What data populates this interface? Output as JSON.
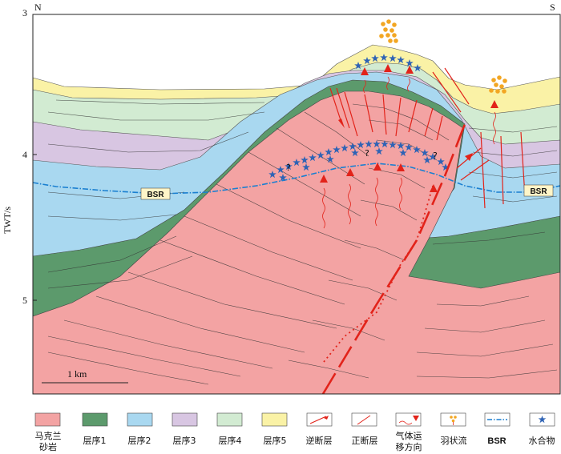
{
  "frame": {
    "left_label": "N",
    "right_label": "S",
    "y_axis_label": "TWT/s",
    "y_ticks": [
      "3",
      "4",
      "5"
    ]
  },
  "annotations": {
    "bsr_left": "BSR",
    "bsr_right": "BSR",
    "scale": "1 km",
    "question_mark": "?"
  },
  "legend": [
    {
      "id": "sandstone",
      "label": "马克兰\n砂岩",
      "fill": "#f3a3a3"
    },
    {
      "id": "seq1",
      "label": "层序1",
      "fill": "#5c9a6c"
    },
    {
      "id": "seq2",
      "label": "层序2",
      "fill": "#a9d8f0"
    },
    {
      "id": "seq3",
      "label": "层序3",
      "fill": "#d8c6e2"
    },
    {
      "id": "seq4",
      "label": "层序4",
      "fill": "#d2ebd2"
    },
    {
      "id": "seq5",
      "label": "层序5",
      "fill": "#faf2a6"
    },
    {
      "id": "thrust",
      "label": "逆断层"
    },
    {
      "id": "normal",
      "label": "正断层"
    },
    {
      "id": "gas",
      "label": "气体运\n移方向"
    },
    {
      "id": "plume",
      "label": "羽状流"
    },
    {
      "id": "bsr",
      "label": "BSR"
    },
    {
      "id": "hydrate",
      "label": "水合物"
    }
  ],
  "colors": {
    "sandstone": "#f3a3a3",
    "seq1": "#5c9a6c",
    "seq2": "#a9d8f0",
    "seq3": "#d8c6e2",
    "seq4": "#d2ebd2",
    "seq5": "#faf2a6",
    "fault": "#e2231a",
    "bsr": "#1a7fd0",
    "hydrate": "#2f63b5",
    "plume": "#f2a623"
  }
}
